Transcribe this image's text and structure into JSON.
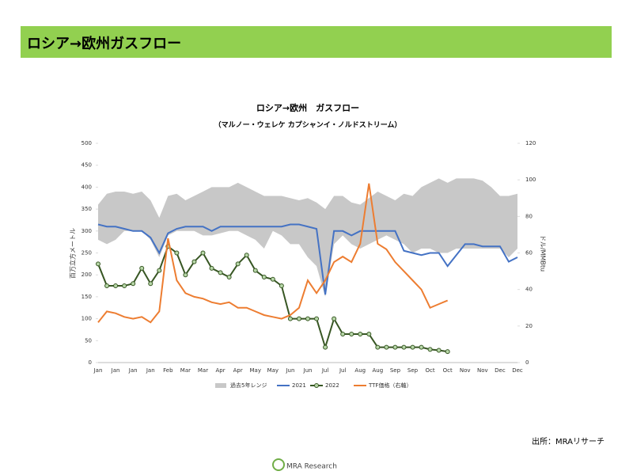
{
  "header": {
    "title": "ロシア→欧州ガスフロー"
  },
  "footer": {
    "source": "出所：MRAリサーチ",
    "logo": "MRA Research"
  },
  "chart_data": {
    "type": "line",
    "title": "ロシア→欧州　ガスフロー",
    "subtitle": "（マルノー・ウェレケ カプシャンイ・ノルドストリーム）",
    "y_label": "百万立方メートル",
    "y2_label": "ドル/MMBtu",
    "categories": [
      "Jan",
      null,
      "Jan",
      null,
      "Jan",
      null,
      "Jan",
      null,
      "Feb",
      null,
      "Mar",
      null,
      "Mar",
      null,
      "Apr",
      null,
      "Apr",
      null,
      "May",
      null,
      "May",
      null,
      "Jun",
      null,
      "Jun",
      null,
      "Jul",
      null,
      "Jul",
      null,
      "Aug",
      null,
      "Aug",
      null,
      "Sep",
      null,
      "Sep",
      null,
      "Oct",
      null,
      "Oct",
      null,
      "Nov",
      null,
      "Nov",
      null,
      "Dec",
      null,
      "Dec"
    ],
    "ylim": [
      0,
      500
    ],
    "yticks": [
      0,
      50,
      100,
      150,
      200,
      250,
      300,
      350,
      400,
      450,
      500
    ],
    "y2lim": [
      0,
      120
    ],
    "y2ticks": [
      0,
      20,
      40,
      60,
      80,
      100,
      120
    ],
    "legend": "bottom",
    "series": [
      {
        "name": "過去5年レンジ",
        "color": "#c8c8c8",
        "kind": "range",
        "high": [
          360,
          385,
          390,
          390,
          385,
          390,
          370,
          330,
          380,
          385,
          370,
          380,
          390,
          400,
          400,
          400,
          410,
          400,
          390,
          380,
          380,
          380,
          375,
          370,
          375,
          365,
          350,
          380,
          380,
          365,
          360,
          375,
          390,
          380,
          370,
          385,
          380,
          400,
          410,
          420,
          410,
          420,
          420,
          420,
          415,
          400,
          380,
          380,
          385
        ],
        "low": [
          280,
          270,
          280,
          300,
          300,
          300,
          280,
          240,
          290,
          300,
          300,
          300,
          290,
          290,
          295,
          300,
          300,
          290,
          280,
          260,
          300,
          290,
          270,
          270,
          240,
          220,
          150,
          270,
          290,
          270,
          260,
          270,
          280,
          290,
          280,
          270,
          250,
          260,
          260,
          250,
          250,
          260,
          260,
          260,
          260,
          260,
          260,
          240,
          260
        ]
      },
      {
        "name": "2021",
        "color": "#4472c4",
        "values": [
          315,
          310,
          310,
          305,
          300,
          300,
          285,
          250,
          295,
          305,
          310,
          310,
          310,
          300,
          310,
          310,
          310,
          310,
          310,
          310,
          310,
          310,
          315,
          315,
          310,
          305,
          155,
          300,
          300,
          290,
          300,
          300,
          300,
          300,
          300,
          255,
          250,
          245,
          250,
          250,
          220,
          245,
          270,
          270,
          265,
          265,
          265,
          230,
          240
        ]
      },
      {
        "name": "2022",
        "color": "#375623",
        "marker": "circle",
        "marker_fill": "#b7d7a8",
        "values": [
          225,
          175,
          175,
          175,
          180,
          215,
          180,
          210,
          265,
          250,
          200,
          230,
          250,
          215,
          205,
          195,
          225,
          245,
          210,
          195,
          190,
          175,
          100,
          100,
          100,
          100,
          35,
          100,
          65,
          65,
          65,
          65,
          35,
          35,
          35,
          35,
          35,
          35,
          30,
          28,
          25,
          null,
          null,
          null,
          null,
          null,
          null,
          null,
          null
        ]
      },
      {
        "name": "TTF価格（右軸）",
        "color": "#ed7d31",
        "axis": "y2",
        "values": [
          22,
          28,
          27,
          25,
          24,
          25,
          22,
          28,
          68,
          45,
          38,
          36,
          35,
          33,
          32,
          33,
          30,
          30,
          28,
          26,
          25,
          24,
          26,
          30,
          45,
          38,
          45,
          55,
          58,
          55,
          65,
          98,
          65,
          62,
          55,
          50,
          45,
          40,
          30,
          32,
          34,
          null,
          null,
          null,
          null,
          null,
          null,
          null,
          null
        ]
      }
    ]
  }
}
